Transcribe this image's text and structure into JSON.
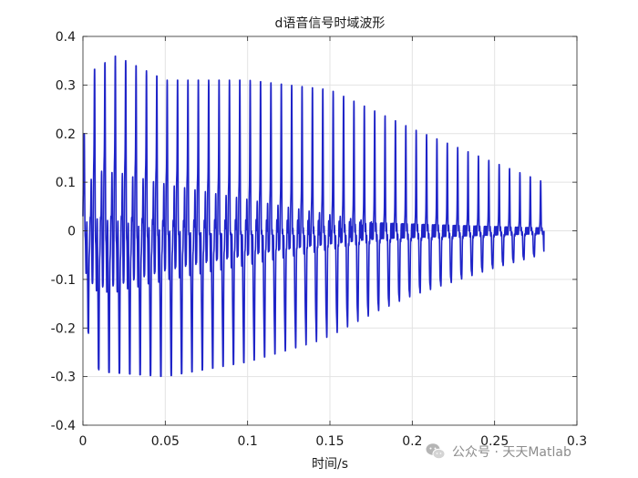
{
  "chart_data": {
    "type": "line",
    "title": "d语音信号时域波形",
    "xlabel": "时间/s",
    "ylabel": "",
    "xlim": [
      0,
      0.3
    ],
    "ylim": [
      -0.4,
      0.4
    ],
    "xticks": [
      0,
      0.05,
      0.1,
      0.15,
      0.2,
      0.25,
      0.3
    ],
    "xtick_labels": [
      "0",
      "0.05",
      "0.1",
      "0.15",
      "0.2",
      "0.25",
      "0.3"
    ],
    "yticks": [
      -0.4,
      -0.3,
      -0.2,
      -0.1,
      0,
      0.1,
      0.2,
      0.3,
      0.4
    ],
    "ytick_labels": [
      "-0.4",
      "-0.3",
      "-0.2",
      "-0.1",
      "0",
      "0.1",
      "0.2",
      "0.3",
      "0.4"
    ],
    "grid": true,
    "line_color": "#1f24c8",
    "series": [
      {
        "name": "",
        "duration": 0.28,
        "pitch_period": 0.0063,
        "peak_envelope": [
          [
            0,
            0.18
          ],
          [
            0.006,
            0.33
          ],
          [
            0.02,
            0.36
          ],
          [
            0.05,
            0.31
          ],
          [
            0.1,
            0.31
          ],
          [
            0.15,
            0.29
          ],
          [
            0.2,
            0.21
          ],
          [
            0.25,
            0.14
          ],
          [
            0.28,
            0.1
          ]
        ],
        "trough_envelope": [
          [
            0,
            -0.17
          ],
          [
            0.01,
            -0.29
          ],
          [
            0.05,
            -0.3
          ],
          [
            0.1,
            -0.27
          ],
          [
            0.15,
            -0.22
          ],
          [
            0.2,
            -0.14
          ],
          [
            0.25,
            -0.08
          ],
          [
            0.28,
            -0.05
          ]
        ],
        "end_value": 0
      }
    ]
  },
  "watermark": {
    "text": "公众号 · 天天Matlab",
    "icon": "wechat-icon"
  }
}
